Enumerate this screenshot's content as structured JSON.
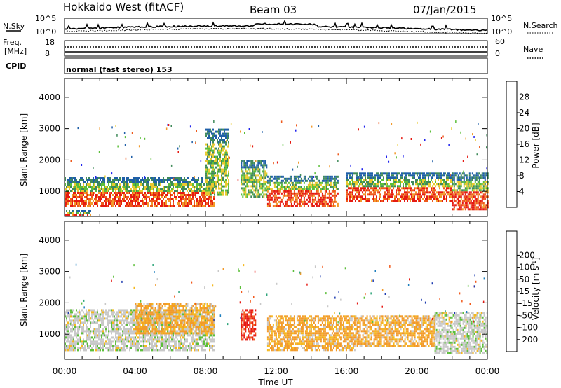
{
  "header": {
    "title": "Hokkaido West (fitACF)",
    "beam": "Beam 03",
    "date": "07/Jan/2015"
  },
  "strips": {
    "nsky_label": "N.Sky",
    "nsky_ticks": [
      "10^5",
      "10^0"
    ],
    "nsearch_label": "N.Search",
    "nsearch_ticks": [
      "10^5",
      "10^0"
    ],
    "freq_label_top": "Freq.",
    "freq_label_unit": "[MHz]",
    "freq_ticks": [
      "18",
      "8"
    ],
    "nave_label": "Nave",
    "nave_ticks": [
      "60",
      "0"
    ],
    "cpid_label": "CPID",
    "cpid_text": "normal (fast stereo) 153"
  },
  "colors": {
    "power_scale": [
      "#1e22ee",
      "#1f5fa8",
      "#3f8a5a",
      "#5cbf3a",
      "#e9c92e",
      "#f29a2a",
      "#ee5a1c",
      "#e51a12"
    ],
    "velocity_scale": [
      "#e61a14",
      "#f25a1c",
      "#f29a2a",
      "#f5b81f",
      "#c8c8c8",
      "#c8c8c8",
      "#5cbf3a",
      "#2fa57a",
      "#1f7fbf",
      "#1e3cb0"
    ]
  },
  "chart_data": [
    {
      "type": "heatmap",
      "panel": "power",
      "xlabel": "Time UT",
      "ylabel": "Slant Range [km]",
      "x_ticks": [
        "00:00",
        "04:00",
        "08:00",
        "12:00",
        "16:00",
        "20:00",
        "00:00"
      ],
      "xlim_hours": [
        0,
        24
      ],
      "ylim": [
        200,
        4600
      ],
      "y_ticks": [
        1000,
        2000,
        3000,
        4000
      ],
      "colorbar": {
        "label": "Power [dB]",
        "range": [
          0,
          32
        ],
        "ticks": [
          4,
          8,
          12,
          16,
          20,
          24,
          28
        ]
      },
      "echo_bands": [
        {
          "t_start": 0.0,
          "t_end": 1.5,
          "range_low": 250,
          "range_high": 400,
          "level": "strong"
        },
        {
          "t_start": 0.0,
          "t_end": 8.5,
          "range_low": 550,
          "range_high": 1450,
          "level": "strong"
        },
        {
          "t_start": 8.0,
          "t_end": 9.3,
          "range_low": 900,
          "range_high": 3000,
          "level": "moderate"
        },
        {
          "t_start": 10.0,
          "t_end": 11.5,
          "range_low": 800,
          "range_high": 2000,
          "level": "moderate"
        },
        {
          "t_start": 11.5,
          "t_end": 15.5,
          "range_low": 500,
          "range_high": 1500,
          "level": "strong"
        },
        {
          "t_start": 16.0,
          "t_end": 22.0,
          "range_low": 700,
          "range_high": 1600,
          "level": "strong"
        },
        {
          "t_start": 22.0,
          "t_end": 24.0,
          "range_low": 400,
          "range_high": 1600,
          "level": "strong"
        }
      ]
    },
    {
      "type": "heatmap",
      "panel": "velocity",
      "xlabel": "Time UT",
      "ylabel": "Slant Range [km]",
      "x_ticks": [
        "00:00",
        "04:00",
        "08:00",
        "12:00",
        "16:00",
        "20:00",
        "00:00"
      ],
      "xlim_hours": [
        0,
        24
      ],
      "ylim": [
        200,
        4600
      ],
      "y_ticks": [
        1000,
        2000,
        3000,
        4000
      ],
      "colorbar": {
        "label": "Velocity [m s-1]",
        "label_main": "Velocity [m s",
        "label_sup": "-1",
        "label_end": "]",
        "range": [
          -250,
          250
        ],
        "ticks": [
          200,
          100,
          50,
          15,
          -15,
          -50,
          -100,
          -200
        ]
      },
      "echo_bands": [
        {
          "t_start": 0.0,
          "t_end": 8.5,
          "range_low": 500,
          "range_high": 1800,
          "velocity": "near-zero"
        },
        {
          "t_start": 4.0,
          "t_end": 8.5,
          "range_low": 1000,
          "range_high": 2000,
          "velocity": "-50"
        },
        {
          "t_start": 10.0,
          "t_end": 10.8,
          "range_low": 800,
          "range_high": 1800,
          "velocity": "-200"
        },
        {
          "t_start": 11.5,
          "t_end": 16.5,
          "range_low": 500,
          "range_high": 1600,
          "velocity": "-50"
        },
        {
          "t_start": 16.5,
          "t_end": 21.0,
          "range_low": 600,
          "range_high": 1600,
          "velocity": "-50"
        },
        {
          "t_start": 21.0,
          "t_end": 24.0,
          "range_low": 400,
          "range_high": 1700,
          "velocity": "near-zero"
        }
      ]
    }
  ]
}
